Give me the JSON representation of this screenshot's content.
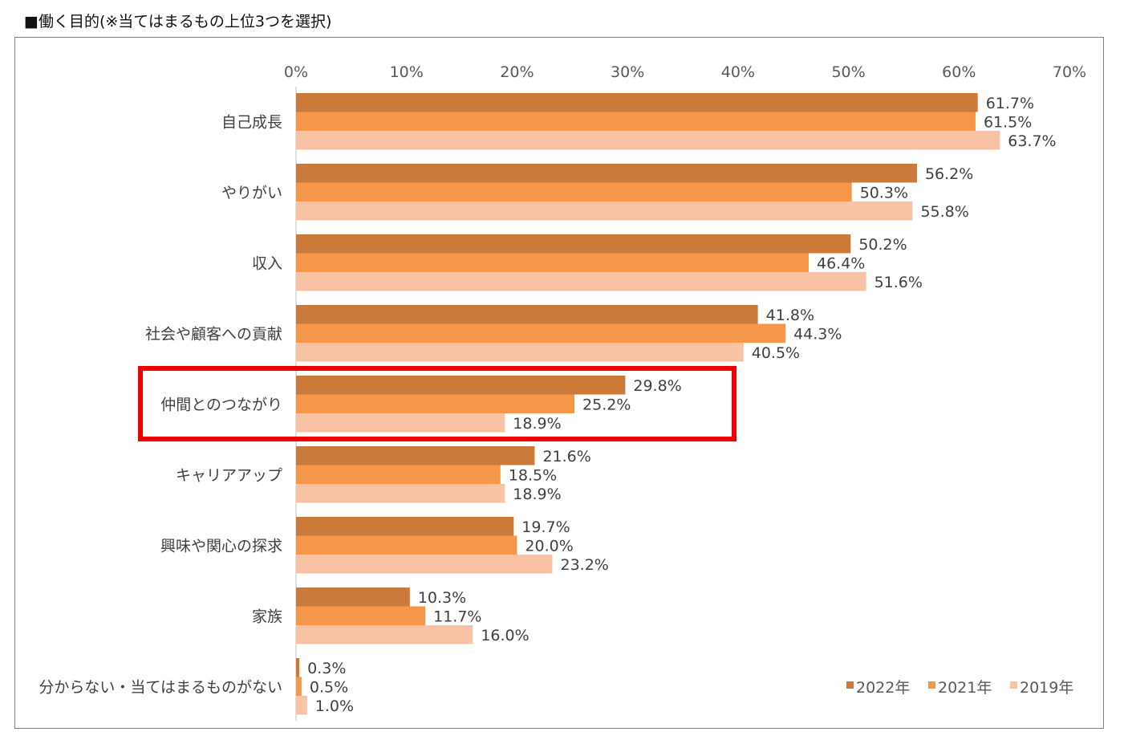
{
  "title": "■働く目的(※当てはまるもの上位3つを選択)",
  "colors": {
    "2022年": "#cc7a3a",
    "2021年": "#f5964a",
    "2019年": "#f8c2a5",
    "highlight": "#ee0000"
  },
  "chart_data": {
    "type": "bar",
    "orientation": "horizontal",
    "title": "■働く目的(※当てはまるもの上位3つを選択)",
    "xlim": [
      0,
      70
    ],
    "ticks": [
      "0%",
      "10%",
      "20%",
      "30%",
      "40%",
      "50%",
      "60%",
      "70%"
    ],
    "tick_values": [
      0,
      10,
      20,
      30,
      40,
      50,
      60,
      70
    ],
    "legend_position": "bottom-right",
    "highlighted_category": "仲間とのつながり",
    "categories": [
      "自己成長",
      "やりがい",
      "収入",
      "社会や顧客への貢献",
      "仲間とのつながり",
      "キャリアアップ",
      "興味や関心の探求",
      "家族",
      "分からない・当てはまるものがない"
    ],
    "series": [
      {
        "name": "2022年",
        "values": [
          61.7,
          56.2,
          50.2,
          41.8,
          29.8,
          21.6,
          19.7,
          10.3,
          0.3
        ],
        "labels": [
          "61.7%",
          "56.2%",
          "50.2%",
          "41.8%",
          "29.8%",
          "21.6%",
          "19.7%",
          "10.3%",
          "0.3%"
        ]
      },
      {
        "name": "2021年",
        "values": [
          61.5,
          50.3,
          46.4,
          44.3,
          25.2,
          18.5,
          20.0,
          11.7,
          0.5
        ],
        "labels": [
          "61.5%",
          "50.3%",
          "46.4%",
          "44.3%",
          "25.2%",
          "18.5%",
          "20.0%",
          "11.7%",
          "0.5%"
        ]
      },
      {
        "name": "2019年",
        "values": [
          63.7,
          55.8,
          51.6,
          40.5,
          18.9,
          18.9,
          23.2,
          16.0,
          1.0
        ],
        "labels": [
          "63.7%",
          "55.8%",
          "51.6%",
          "40.5%",
          "18.9%",
          "18.9%",
          "23.2%",
          "16.0%",
          "1.0%"
        ]
      }
    ]
  }
}
